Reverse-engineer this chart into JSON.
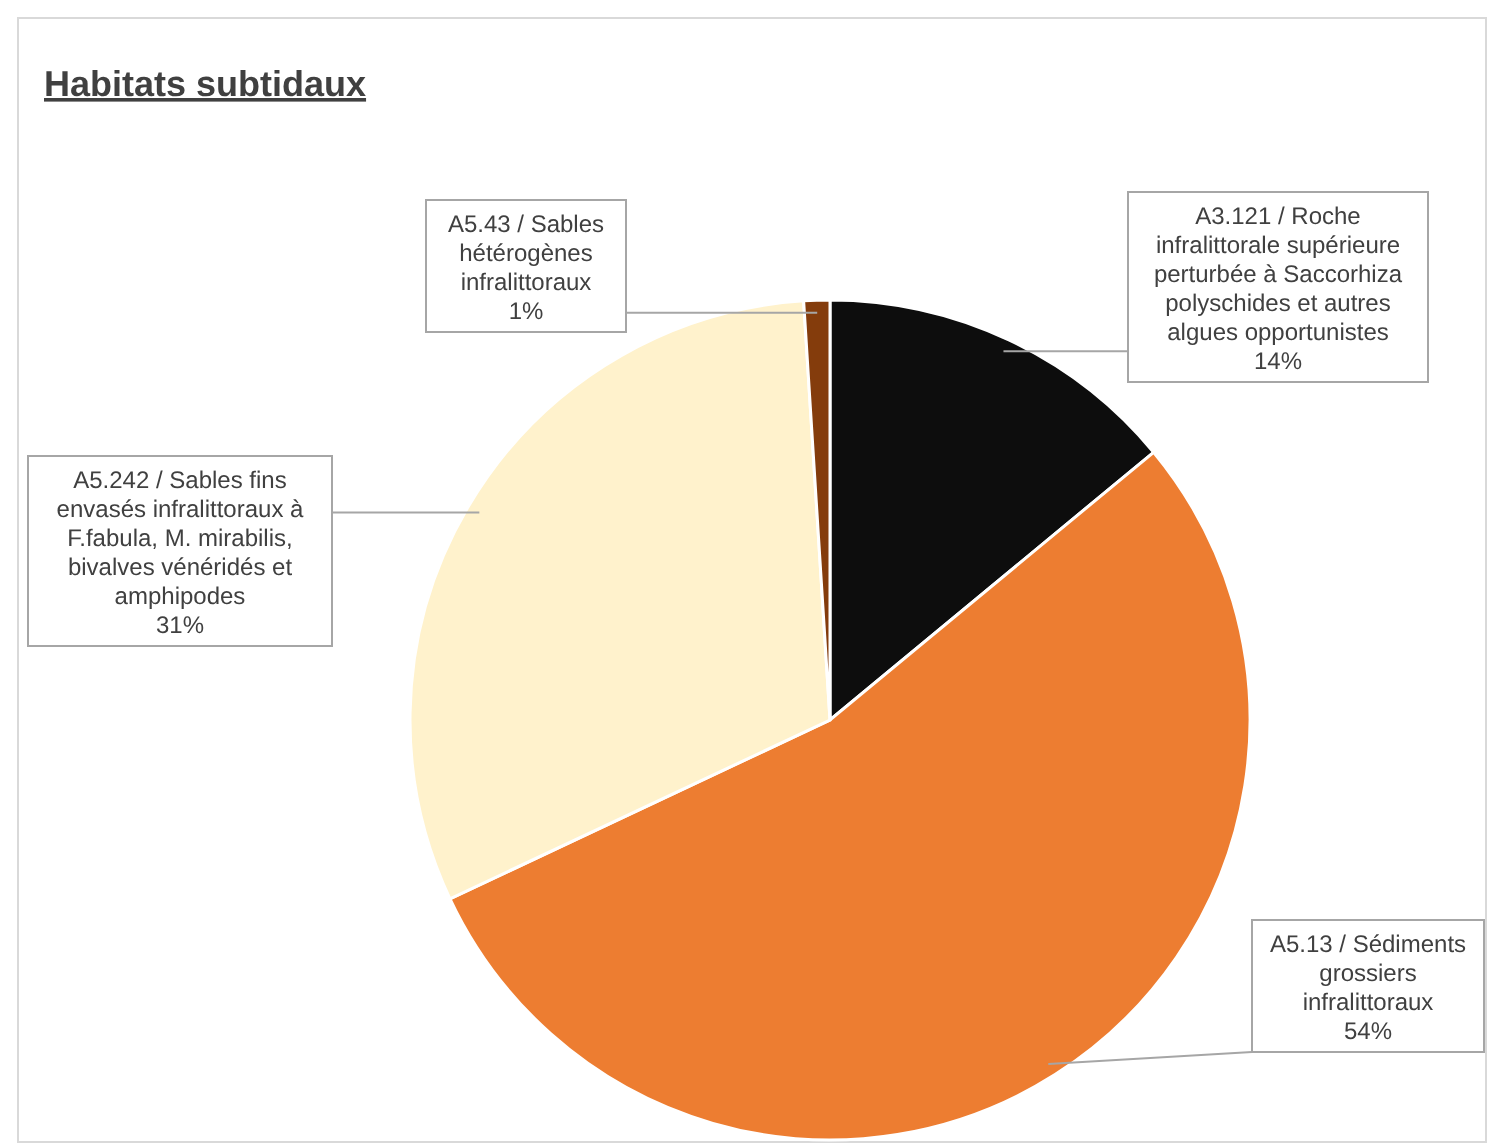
{
  "chart_data": {
    "type": "pie",
    "title": "Habitats subtidaux",
    "categories": [
      "A3.121 / Roche infralittorale supérieure perturbée à Saccorhiza polyschides et autres algues opportunistes",
      "A5.13 / Sédiments grossiers infralittoraux",
      "A5.242 / Sables fins envasés infralittoraux à F.fabula, M. mirabilis, bivalves vénéridés et amphipodes",
      "A5.43 / Sables hétérogènes infralittoraux"
    ],
    "values": [
      14,
      54,
      31,
      1
    ],
    "value_labels": [
      "14%",
      "54%",
      "31%",
      "1%"
    ],
    "colors": [
      "#0d0d0d",
      "#ed7d31",
      "#fff2cc",
      "#843c0c"
    ]
  }
}
